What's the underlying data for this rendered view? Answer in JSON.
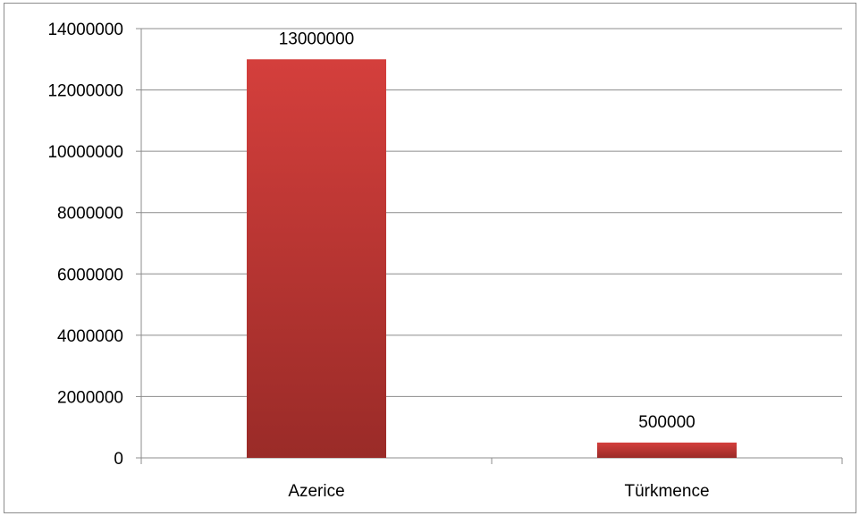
{
  "chart_data": {
    "type": "bar",
    "title": "",
    "xlabel": "",
    "ylabel": "",
    "categories": [
      "Azerice",
      "Türkmence"
    ],
    "values": [
      13000000,
      500000
    ],
    "data_labels": [
      "13000000",
      "500000"
    ],
    "ylim": [
      0,
      14000000
    ],
    "yticks": [
      0,
      2000000,
      4000000,
      6000000,
      8000000,
      10000000,
      12000000,
      14000000
    ],
    "ytick_labels": [
      "0",
      "2000000",
      "4000000",
      "6000000",
      "8000000",
      "10000000",
      "12000000",
      "14000000"
    ],
    "grid": true,
    "legend": "none",
    "colors": {
      "bar_top": "#d43f3c",
      "bar_bottom": "#9a2b28",
      "grid": "#8c8c8c",
      "axis": "#8c8c8c",
      "frame": "#8c8c8c"
    }
  }
}
